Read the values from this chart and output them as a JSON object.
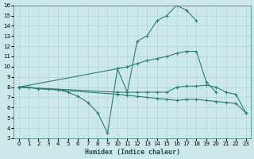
{
  "background_color": "#cce8e8",
  "grid_color": "#b0d4d4",
  "line_color": "#2e7d6e",
  "xlabel": "Humidex (Indice chaleur)",
  "xlim": [
    -0.5,
    23.5
  ],
  "ylim": [
    3,
    16
  ],
  "xticks": [
    0,
    1,
    2,
    3,
    4,
    5,
    6,
    7,
    8,
    9,
    10,
    11,
    12,
    13,
    14,
    15,
    16,
    17,
    18,
    19,
    20,
    21,
    22,
    23
  ],
  "yticks": [
    3,
    4,
    5,
    6,
    7,
    8,
    9,
    10,
    11,
    12,
    13,
    14,
    15,
    16
  ],
  "lines": [
    {
      "x": [
        0,
        1,
        2,
        3,
        4,
        5,
        6,
        7,
        8,
        9,
        10,
        11,
        12,
        13,
        14,
        15,
        16,
        17,
        18
      ],
      "y": [
        8,
        8,
        7.85,
        7.8,
        7.75,
        7.5,
        7.1,
        6.5,
        5.5,
        3.5,
        9.8,
        7.5,
        12.5,
        13.0,
        14.5,
        15.0,
        16.0,
        15.5,
        14.5
      ]
    },
    {
      "x": [
        0,
        10,
        11,
        12,
        13,
        14,
        15,
        16,
        17,
        18,
        19,
        20
      ],
      "y": [
        8,
        9.8,
        10.0,
        10.3,
        10.6,
        10.8,
        11.0,
        11.3,
        11.5,
        11.5,
        8.5,
        7.5
      ]
    },
    {
      "x": [
        0,
        10,
        11,
        12,
        13,
        14,
        15,
        16,
        17,
        18,
        19,
        20,
        21,
        22,
        23
      ],
      "y": [
        8,
        7.5,
        7.5,
        7.5,
        7.5,
        7.5,
        7.5,
        8.0,
        8.1,
        8.1,
        8.2,
        8.0,
        7.5,
        7.3,
        5.5
      ]
    },
    {
      "x": [
        0,
        10,
        11,
        12,
        13,
        14,
        15,
        16,
        17,
        18,
        19,
        20,
        21,
        22,
        23
      ],
      "y": [
        8,
        7.3,
        7.2,
        7.1,
        7.0,
        6.9,
        6.8,
        6.7,
        6.8,
        6.8,
        6.7,
        6.6,
        6.5,
        6.4,
        5.5
      ]
    }
  ]
}
